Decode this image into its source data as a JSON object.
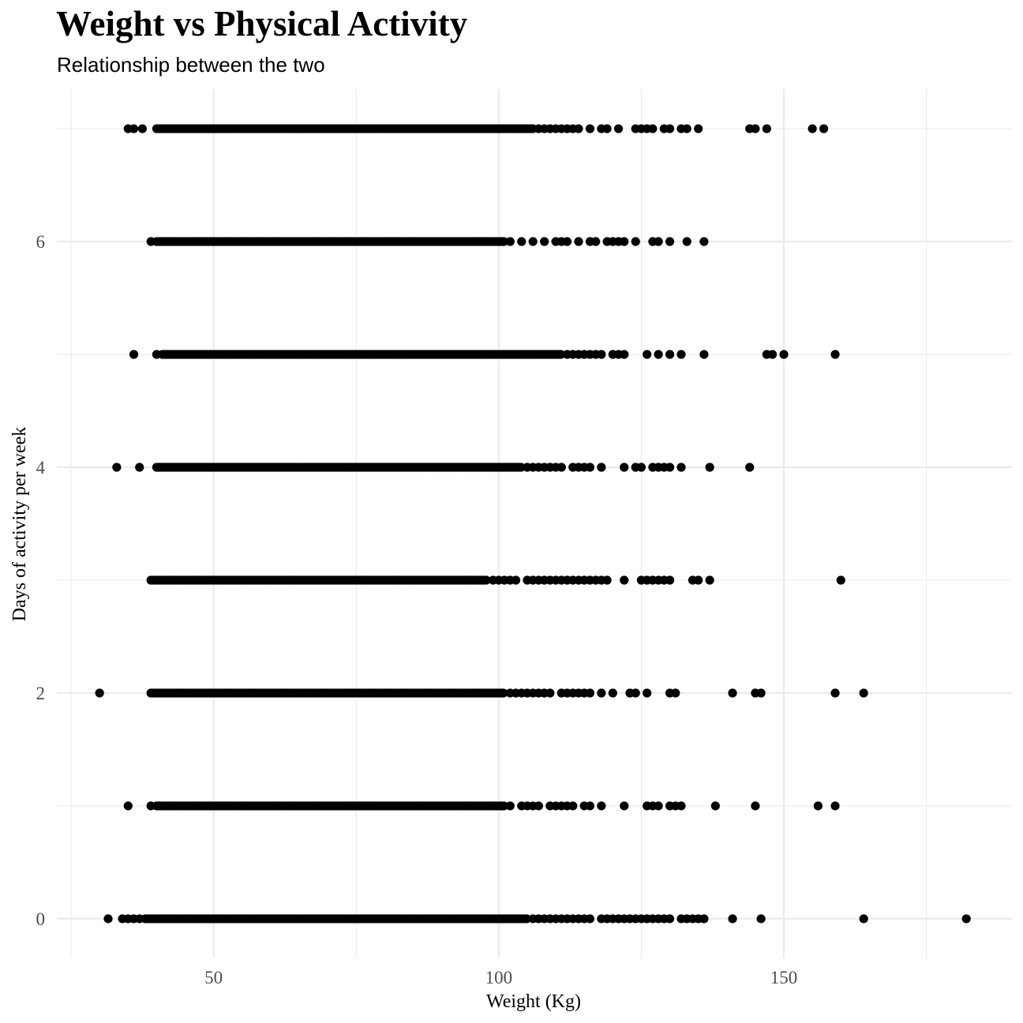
{
  "chart_data": {
    "type": "scatter",
    "title": "Weight vs Physical Activity",
    "subtitle": "Relationship between the two",
    "xlabel": "Weight (Kg)",
    "ylabel": "Days of activity per week",
    "xlim": [
      22.5,
      190
    ],
    "ylim": [
      -0.35,
      7.35
    ],
    "x_ticks": [
      50,
      100,
      150
    ],
    "y_ticks": [
      0,
      2,
      4,
      6
    ],
    "grid": true,
    "point_color": "#000000",
    "grid_color": "#ebebeb",
    "series": [
      {
        "y": 7,
        "dense_ranges": [
          [
            40,
            106
          ]
        ],
        "x": [
          35,
          36,
          37.5,
          107,
          108,
          109,
          110,
          111,
          112,
          113,
          114,
          116,
          118,
          119,
          121,
          124,
          125,
          126,
          127,
          129,
          130,
          132,
          133,
          135,
          144,
          145,
          147,
          155,
          157
        ]
      },
      {
        "y": 6,
        "dense_ranges": [
          [
            40,
            101
          ]
        ],
        "x": [
          39,
          102,
          104,
          106,
          108,
          110,
          111,
          112,
          114,
          116,
          117,
          119,
          120,
          121,
          122,
          124,
          127,
          128,
          130,
          133,
          136
        ]
      },
      {
        "y": 5,
        "dense_ranges": [
          [
            41,
            111
          ]
        ],
        "x": [
          36,
          40,
          112,
          113,
          114,
          115,
          116,
          117,
          118,
          120,
          121,
          122,
          126,
          128,
          130,
          132,
          136,
          147,
          148,
          150,
          159
        ]
      },
      {
        "y": 4,
        "dense_ranges": [
          [
            40,
            104
          ]
        ],
        "x": [
          33,
          37,
          105,
          106,
          107,
          108,
          109,
          110,
          111,
          113,
          114,
          115,
          116,
          118,
          122,
          124,
          125,
          127,
          128,
          129,
          130,
          132,
          137,
          144
        ]
      },
      {
        "y": 3,
        "dense_ranges": [
          [
            39,
            98
          ]
        ],
        "x": [
          99,
          100,
          101,
          102,
          103,
          105,
          106,
          107,
          108,
          109,
          110,
          111,
          112,
          113,
          114,
          115,
          116,
          117,
          118,
          119,
          122,
          125,
          126,
          127,
          128,
          129,
          130,
          134,
          135,
          137,
          160
        ]
      },
      {
        "y": 2,
        "dense_ranges": [
          [
            39,
            101
          ]
        ],
        "x": [
          30,
          102,
          103,
          104,
          105,
          106,
          107,
          108,
          109,
          111,
          112,
          113,
          114,
          115,
          116,
          118,
          120,
          123,
          124,
          126,
          130,
          131,
          141,
          145,
          146,
          159,
          164
        ]
      },
      {
        "y": 1,
        "dense_ranges": [
          [
            40,
            101
          ]
        ],
        "x": [
          35,
          39,
          102,
          104,
          105,
          106,
          107,
          109,
          110,
          111,
          112,
          113,
          115,
          116,
          118,
          122,
          126,
          127,
          128,
          130,
          131,
          132,
          138,
          145,
          156,
          159
        ]
      },
      {
        "y": 0,
        "dense_ranges": [
          [
            38,
            105
          ]
        ],
        "x": [
          31.5,
          34,
          35,
          36,
          37,
          106,
          107,
          108,
          109,
          110,
          111,
          112,
          113,
          114,
          115,
          116,
          118,
          119,
          120,
          121,
          122,
          123,
          124,
          125,
          126,
          127,
          128,
          129,
          130,
          132,
          133,
          134,
          135,
          136,
          141,
          146,
          164,
          182
        ]
      }
    ]
  }
}
